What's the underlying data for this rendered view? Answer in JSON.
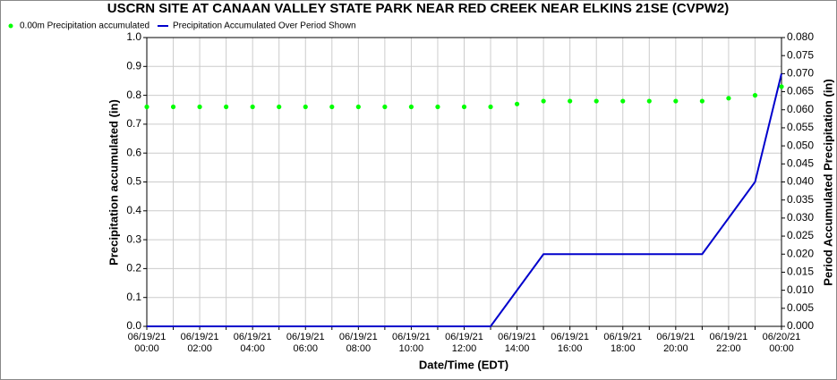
{
  "chart_data": {
    "type": "line",
    "title": "USCRN SITE AT CANAAN VALLEY STATE PARK NEAR RED CREEK NEAR ELKINS 21SE (CVPW2)",
    "xlabel": "Date/Time (EDT)",
    "ylabel": "Precipitation accumulated (in)",
    "y2label": "Period Accumulated Precipitation (in)",
    "x": [
      "06/19/21 00:00",
      "06/19/21 01:00",
      "06/19/21 02:00",
      "06/19/21 03:00",
      "06/19/21 04:00",
      "06/19/21 05:00",
      "06/19/21 06:00",
      "06/19/21 07:00",
      "06/19/21 08:00",
      "06/19/21 09:00",
      "06/19/21 10:00",
      "06/19/21 11:00",
      "06/19/21 12:00",
      "06/19/21 13:00",
      "06/19/21 14:00",
      "06/19/21 15:00",
      "06/19/21 16:00",
      "06/19/21 17:00",
      "06/19/21 18:00",
      "06/19/21 19:00",
      "06/19/21 20:00",
      "06/19/21 21:00",
      "06/19/21 22:00",
      "06/19/21 23:00",
      "06/20/21 00:00"
    ],
    "series": [
      {
        "name": "0.00m Precipitation accumulated",
        "color": "#00ff00",
        "style": "dots",
        "values": [
          0.76,
          0.76,
          0.76,
          0.76,
          0.76,
          0.76,
          0.76,
          0.76,
          0.76,
          0.76,
          0.76,
          0.76,
          0.76,
          0.76,
          0.77,
          0.78,
          0.78,
          0.78,
          0.78,
          0.78,
          0.78,
          0.78,
          0.79,
          0.8,
          0.83
        ]
      },
      {
        "name": "Precipitation Accumulated Over Period Shown",
        "color": "#0000cc",
        "style": "line",
        "axis": "y2",
        "values": [
          0,
          0,
          0,
          0,
          0,
          0,
          0,
          0,
          0,
          0,
          0,
          0,
          0,
          0,
          0.01,
          0.02,
          0.02,
          0.02,
          0.02,
          0.02,
          0.02,
          0.02,
          0.03,
          0.04,
          0.07
        ]
      }
    ],
    "ylim": [
      0,
      1
    ],
    "yticks": [
      {
        "value": 0,
        "label": "0.0"
      },
      0.1,
      0.2,
      0.3,
      0.4,
      0.5,
      0.6,
      0.7,
      0.8,
      0.9,
      {
        "value": 1,
        "label": "1.0"
      }
    ],
    "y2lim": [
      0,
      0.08
    ],
    "y2ticks": [
      {
        "value": 0,
        "label": "0.000"
      },
      {
        "value": 0.005,
        "label": "0.005"
      },
      {
        "value": 0.01,
        "label": "0.010"
      },
      {
        "value": 0.015,
        "label": "0.015"
      },
      {
        "value": 0.02,
        "label": "0.020"
      },
      {
        "value": 0.025,
        "label": "0.025"
      },
      {
        "value": 0.03,
        "label": "0.030"
      },
      {
        "value": 0.035,
        "label": "0.035"
      },
      {
        "value": 0.04,
        "label": "0.040"
      },
      {
        "value": 0.045,
        "label": "0.045"
      },
      {
        "value": 0.05,
        "label": "0.050"
      },
      {
        "value": 0.055,
        "label": "0.055"
      },
      {
        "value": 0.06,
        "label": "0.060"
      },
      {
        "value": 0.065,
        "label": "0.065"
      },
      {
        "value": 0.07,
        "label": "0.070"
      },
      {
        "value": 0.075,
        "label": "0.075"
      },
      {
        "value": 0.08,
        "label": "0.080"
      }
    ],
    "grid": true
  }
}
